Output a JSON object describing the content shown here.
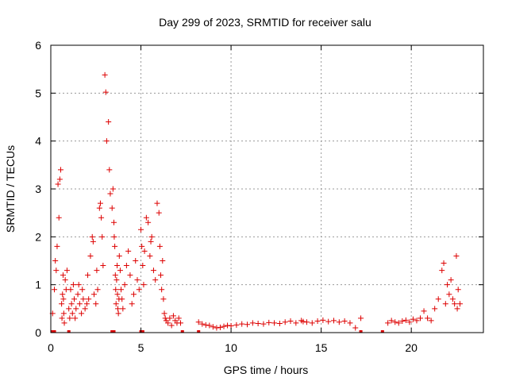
{
  "colors": {
    "series": "#dd0000",
    "axis": "#000000",
    "grid": "#999999",
    "background": "#ffffff"
  },
  "chart_data": {
    "type": "scatter",
    "title": "Day 299 of 2023, SRMTID for receiver salu",
    "xlabel": "GPS time / hours",
    "ylabel": "SRMTID / TECUs",
    "xlim": [
      0,
      24
    ],
    "ylim": [
      0,
      6
    ],
    "xticks": [
      0,
      5,
      10,
      15,
      20
    ],
    "xtick_labels": [
      "0",
      "5",
      "10",
      "15",
      "20"
    ],
    "yticks": [
      0,
      1,
      2,
      3,
      4,
      5,
      6
    ],
    "ytick_labels": [
      "0",
      "1",
      "2",
      "3",
      "4",
      "5",
      "6"
    ],
    "grid": true,
    "marker": "plus",
    "series": [
      {
        "name": "SRMTID",
        "x": [
          0.1,
          0.2,
          0.25,
          0.3,
          0.35,
          0.4,
          0.45,
          0.5,
          0.55,
          0.6,
          0.62,
          0.65,
          0.68,
          0.7,
          0.72,
          0.75,
          0.8,
          0.85,
          0.9,
          1.0,
          1.05,
          1.1,
          1.15,
          1.2,
          1.25,
          1.3,
          1.35,
          1.4,
          1.5,
          1.55,
          1.6,
          1.7,
          1.75,
          1.8,
          1.9,
          2.0,
          2.05,
          2.1,
          2.2,
          2.3,
          2.35,
          2.4,
          2.5,
          2.55,
          2.6,
          2.7,
          2.75,
          2.8,
          2.85,
          2.9,
          3.0,
          3.05,
          3.1,
          3.2,
          3.25,
          3.3,
          3.4,
          3.45,
          3.5,
          3.52,
          3.55,
          3.58,
          3.6,
          3.62,
          3.65,
          3.68,
          3.7,
          3.72,
          3.75,
          3.78,
          3.8,
          3.85,
          3.9,
          3.95,
          4.0,
          4.1,
          4.2,
          4.3,
          4.4,
          4.5,
          4.6,
          4.7,
          4.8,
          4.9,
          5.0,
          5.05,
          5.1,
          5.15,
          5.2,
          5.3,
          5.4,
          5.5,
          5.55,
          5.6,
          5.7,
          5.8,
          5.9,
          6.0,
          6.05,
          6.1,
          6.15,
          6.2,
          6.25,
          6.3,
          6.35,
          6.4,
          6.5,
          6.6,
          6.7,
          6.8,
          6.9,
          7.0,
          7.1,
          7.2,
          8.2,
          8.4,
          8.6,
          8.8,
          9.0,
          9.2,
          9.4,
          9.6,
          9.8,
          10.0,
          10.3,
          10.6,
          10.9,
          11.2,
          11.5,
          11.8,
          12.1,
          12.4,
          12.7,
          13.0,
          13.3,
          13.6,
          13.9,
          14.0,
          14.2,
          14.5,
          14.8,
          15.1,
          15.4,
          15.7,
          16.0,
          16.3,
          16.6,
          16.9,
          17.2,
          18.7,
          18.9,
          19.1,
          19.3,
          19.5,
          19.7,
          19.9,
          20.1,
          20.3,
          20.5,
          20.7,
          20.9,
          21.1,
          21.3,
          21.5,
          21.7,
          21.8,
          21.9,
          22.0,
          22.1,
          22.2,
          22.3,
          22.4,
          22.5,
          22.55,
          22.6,
          22.7
        ],
        "y": [
          0.4,
          0.9,
          1.5,
          1.3,
          1.8,
          3.1,
          2.4,
          3.2,
          3.4,
          0.6,
          0.3,
          0.8,
          1.2,
          0.7,
          0.4,
          0.2,
          1.1,
          0.9,
          1.3,
          0.5,
          0.3,
          0.9,
          0.6,
          0.4,
          1.0,
          0.7,
          0.3,
          0.5,
          0.8,
          1.0,
          0.6,
          0.4,
          0.9,
          0.7,
          0.5,
          0.6,
          1.2,
          0.7,
          1.6,
          2.0,
          1.9,
          0.8,
          0.6,
          1.3,
          0.9,
          2.6,
          2.7,
          2.4,
          2.0,
          1.4,
          5.38,
          5.02,
          4.0,
          4.4,
          3.4,
          2.9,
          2.6,
          3.0,
          2.3,
          2.0,
          1.8,
          1.2,
          0.9,
          0.6,
          1.1,
          1.4,
          0.8,
          0.5,
          0.4,
          0.7,
          1.6,
          1.3,
          0.9,
          0.7,
          0.5,
          1.0,
          1.4,
          1.7,
          1.2,
          0.6,
          0.8,
          1.5,
          1.1,
          0.9,
          2.15,
          1.8,
          1.4,
          1.0,
          1.7,
          2.4,
          2.3,
          1.6,
          1.9,
          2.0,
          1.3,
          1.1,
          2.7,
          2.5,
          1.8,
          1.2,
          0.9,
          1.5,
          0.7,
          0.4,
          0.3,
          0.25,
          0.2,
          0.3,
          0.15,
          0.35,
          0.25,
          0.2,
          0.3,
          0.2,
          0.22,
          0.18,
          0.16,
          0.15,
          0.12,
          0.1,
          0.11,
          0.13,
          0.15,
          0.14,
          0.16,
          0.18,
          0.17,
          0.2,
          0.19,
          0.18,
          0.21,
          0.2,
          0.19,
          0.22,
          0.24,
          0.2,
          0.25,
          0.23,
          0.22,
          0.2,
          0.24,
          0.26,
          0.23,
          0.25,
          0.22,
          0.24,
          0.2,
          0.1,
          0.3,
          0.2,
          0.25,
          0.22,
          0.2,
          0.24,
          0.26,
          0.22,
          0.28,
          0.25,
          0.3,
          0.45,
          0.3,
          0.25,
          0.5,
          0.7,
          1.3,
          1.45,
          0.6,
          1.0,
          0.8,
          1.1,
          0.7,
          0.6,
          1.6,
          0.5,
          0.9,
          0.6
        ],
        "zero_markers_x": [
          0.1,
          0.2,
          1.0,
          3.4,
          3.5,
          5.0,
          5.1,
          7.3,
          8.2,
          17.2,
          18.4
        ]
      }
    ]
  }
}
